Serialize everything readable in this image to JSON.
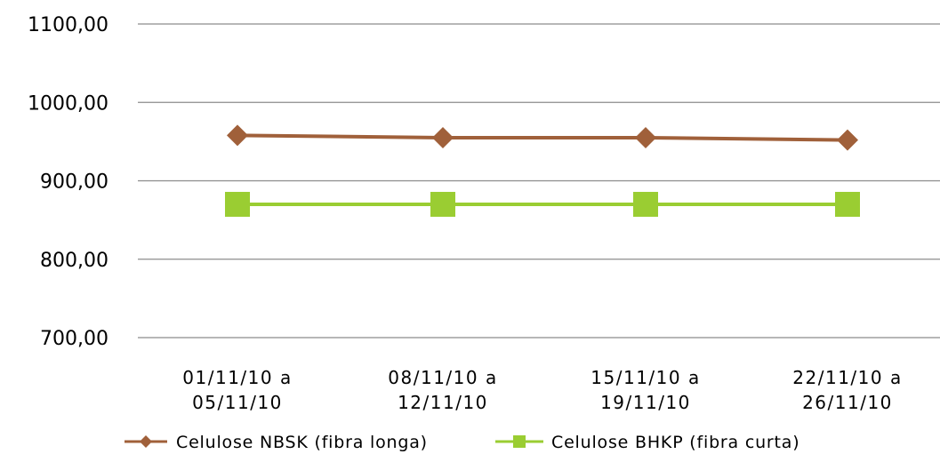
{
  "chart_data": {
    "type": "line",
    "title": "",
    "xlabel": "",
    "ylabel": "",
    "ylim": [
      700,
      1100
    ],
    "y_ticks": [
      "700,00",
      "800,00",
      "900,00",
      "1000,00",
      "1100,00"
    ],
    "y_tick_values": [
      700,
      800,
      900,
      1000,
      1100
    ],
    "categories": [
      [
        "01/11/10 a",
        "05/11/10"
      ],
      [
        "08/11/10 a",
        "12/11/10"
      ],
      [
        "15/11/10 a",
        "19/11/10"
      ],
      [
        "22/11/10 a",
        "26/11/10"
      ]
    ],
    "grid": true,
    "legend_position": "bottom",
    "series": [
      {
        "name": "Celulose NBSK (fibra longa)",
        "values": [
          958,
          955,
          955,
          952
        ],
        "color": "#a0603a",
        "marker": "diamond"
      },
      {
        "name": "Celulose BHKP (fibra curta)",
        "values": [
          870,
          870,
          870,
          870
        ],
        "color": "#9acd32",
        "marker": "square"
      }
    ]
  }
}
